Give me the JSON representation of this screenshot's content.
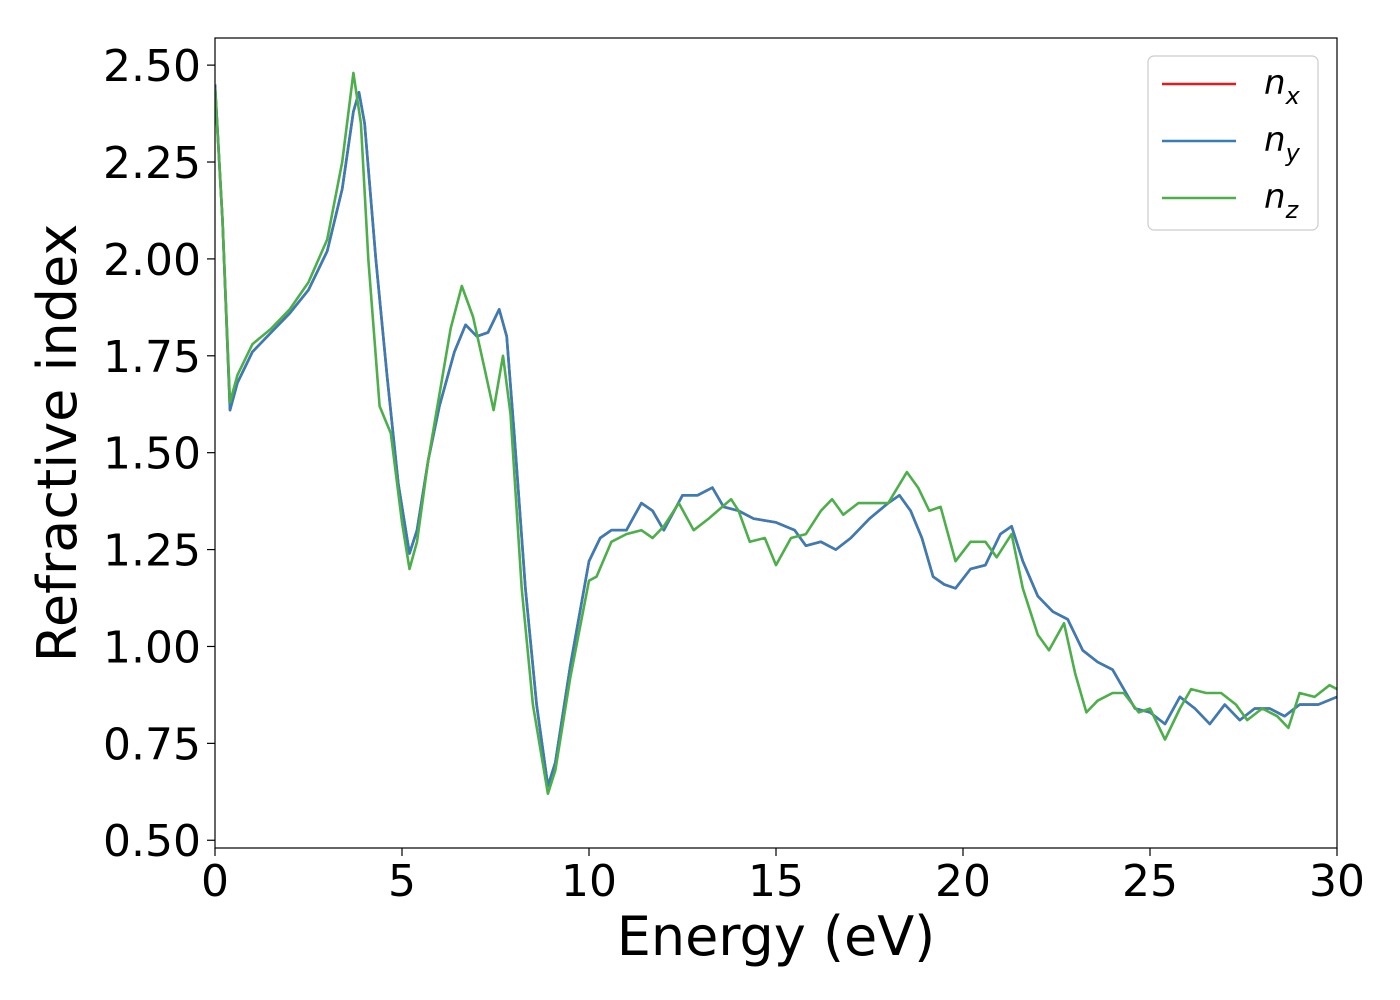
{
  "chart_data": {
    "type": "line",
    "title": "",
    "xlabel": "Energy (eV)",
    "ylabel": "Refractive index",
    "xlim": [
      0,
      30
    ],
    "ylim": [
      0.48,
      2.57
    ],
    "xticks": [
      0,
      5,
      10,
      15,
      20,
      25,
      30
    ],
    "xtick_labels": [
      "0",
      "5",
      "10",
      "15",
      "20",
      "25",
      "30"
    ],
    "yticks": [
      0.5,
      0.75,
      1.0,
      1.25,
      1.5,
      1.75,
      2.0,
      2.25,
      2.5
    ],
    "ytick_labels": [
      "0.50",
      "0.75",
      "1.00",
      "1.25",
      "1.50",
      "1.75",
      "2.00",
      "2.25",
      "2.50"
    ],
    "grid": false,
    "legend_position": "top-right",
    "series": [
      {
        "name": "n",
        "subscript": "x",
        "color": "#e41a1c",
        "points": [
          [
            0,
            2.45
          ],
          [
            0.2,
            2.1
          ],
          [
            0.4,
            1.61
          ],
          [
            0.6,
            1.68
          ],
          [
            1.0,
            1.76
          ],
          [
            1.5,
            1.81
          ],
          [
            2.0,
            1.86
          ],
          [
            2.5,
            1.92
          ],
          [
            3.0,
            2.02
          ],
          [
            3.4,
            2.18
          ],
          [
            3.7,
            2.38
          ],
          [
            3.85,
            2.43
          ],
          [
            4.0,
            2.35
          ],
          [
            4.3,
            2.0
          ],
          [
            4.6,
            1.7
          ],
          [
            4.9,
            1.42
          ],
          [
            5.2,
            1.24
          ],
          [
            5.4,
            1.3
          ],
          [
            5.7,
            1.48
          ],
          [
            6.0,
            1.62
          ],
          [
            6.4,
            1.76
          ],
          [
            6.7,
            1.83
          ],
          [
            7.0,
            1.8
          ],
          [
            7.3,
            1.81
          ],
          [
            7.6,
            1.87
          ],
          [
            7.8,
            1.8
          ],
          [
            8.0,
            1.55
          ],
          [
            8.3,
            1.15
          ],
          [
            8.6,
            0.85
          ],
          [
            8.9,
            0.64
          ],
          [
            9.1,
            0.7
          ],
          [
            9.5,
            0.95
          ],
          [
            10.0,
            1.22
          ],
          [
            10.3,
            1.28
          ],
          [
            10.6,
            1.3
          ],
          [
            11.0,
            1.3
          ],
          [
            11.4,
            1.37
          ],
          [
            11.7,
            1.35
          ],
          [
            12.0,
            1.3
          ],
          [
            12.5,
            1.39
          ],
          [
            12.9,
            1.39
          ],
          [
            13.3,
            1.41
          ],
          [
            13.6,
            1.36
          ],
          [
            14.0,
            1.35
          ],
          [
            14.4,
            1.33
          ],
          [
            15.0,
            1.32
          ],
          [
            15.5,
            1.3
          ],
          [
            15.8,
            1.26
          ],
          [
            16.2,
            1.27
          ],
          [
            16.6,
            1.25
          ],
          [
            17.0,
            1.28
          ],
          [
            17.5,
            1.33
          ],
          [
            18.0,
            1.37
          ],
          [
            18.3,
            1.39
          ],
          [
            18.6,
            1.35
          ],
          [
            18.9,
            1.28
          ],
          [
            19.2,
            1.18
          ],
          [
            19.5,
            1.16
          ],
          [
            19.8,
            1.15
          ],
          [
            20.2,
            1.2
          ],
          [
            20.6,
            1.21
          ],
          [
            21.0,
            1.29
          ],
          [
            21.3,
            1.31
          ],
          [
            21.6,
            1.22
          ],
          [
            22.0,
            1.13
          ],
          [
            22.4,
            1.09
          ],
          [
            22.8,
            1.07
          ],
          [
            23.2,
            0.99
          ],
          [
            23.6,
            0.96
          ],
          [
            24.0,
            0.94
          ],
          [
            24.3,
            0.89
          ],
          [
            24.6,
            0.84
          ],
          [
            25.0,
            0.83
          ],
          [
            25.4,
            0.8
          ],
          [
            25.8,
            0.87
          ],
          [
            26.2,
            0.84
          ],
          [
            26.6,
            0.8
          ],
          [
            27.0,
            0.85
          ],
          [
            27.4,
            0.81
          ],
          [
            27.8,
            0.84
          ],
          [
            28.2,
            0.84
          ],
          [
            28.6,
            0.82
          ],
          [
            29.0,
            0.85
          ],
          [
            29.5,
            0.85
          ],
          [
            30.0,
            0.87
          ]
        ]
      },
      {
        "name": "n",
        "subscript": "y",
        "color": "#377eb8",
        "points": [
          [
            0,
            2.45
          ],
          [
            0.2,
            2.1
          ],
          [
            0.4,
            1.61
          ],
          [
            0.6,
            1.68
          ],
          [
            1.0,
            1.76
          ],
          [
            1.5,
            1.81
          ],
          [
            2.0,
            1.86
          ],
          [
            2.5,
            1.92
          ],
          [
            3.0,
            2.02
          ],
          [
            3.4,
            2.18
          ],
          [
            3.7,
            2.38
          ],
          [
            3.85,
            2.43
          ],
          [
            4.0,
            2.35
          ],
          [
            4.3,
            2.0
          ],
          [
            4.6,
            1.7
          ],
          [
            4.9,
            1.42
          ],
          [
            5.2,
            1.24
          ],
          [
            5.4,
            1.3
          ],
          [
            5.7,
            1.48
          ],
          [
            6.0,
            1.62
          ],
          [
            6.4,
            1.76
          ],
          [
            6.7,
            1.83
          ],
          [
            7.0,
            1.8
          ],
          [
            7.3,
            1.81
          ],
          [
            7.6,
            1.87
          ],
          [
            7.8,
            1.8
          ],
          [
            8.0,
            1.55
          ],
          [
            8.3,
            1.15
          ],
          [
            8.6,
            0.85
          ],
          [
            8.9,
            0.64
          ],
          [
            9.1,
            0.7
          ],
          [
            9.5,
            0.95
          ],
          [
            10.0,
            1.22
          ],
          [
            10.3,
            1.28
          ],
          [
            10.6,
            1.3
          ],
          [
            11.0,
            1.3
          ],
          [
            11.4,
            1.37
          ],
          [
            11.7,
            1.35
          ],
          [
            12.0,
            1.3
          ],
          [
            12.5,
            1.39
          ],
          [
            12.9,
            1.39
          ],
          [
            13.3,
            1.41
          ],
          [
            13.6,
            1.36
          ],
          [
            14.0,
            1.35
          ],
          [
            14.4,
            1.33
          ],
          [
            15.0,
            1.32
          ],
          [
            15.5,
            1.3
          ],
          [
            15.8,
            1.26
          ],
          [
            16.2,
            1.27
          ],
          [
            16.6,
            1.25
          ],
          [
            17.0,
            1.28
          ],
          [
            17.5,
            1.33
          ],
          [
            18.0,
            1.37
          ],
          [
            18.3,
            1.39
          ],
          [
            18.6,
            1.35
          ],
          [
            18.9,
            1.28
          ],
          [
            19.2,
            1.18
          ],
          [
            19.5,
            1.16
          ],
          [
            19.8,
            1.15
          ],
          [
            20.2,
            1.2
          ],
          [
            20.6,
            1.21
          ],
          [
            21.0,
            1.29
          ],
          [
            21.3,
            1.31
          ],
          [
            21.6,
            1.22
          ],
          [
            22.0,
            1.13
          ],
          [
            22.4,
            1.09
          ],
          [
            22.8,
            1.07
          ],
          [
            23.2,
            0.99
          ],
          [
            23.6,
            0.96
          ],
          [
            24.0,
            0.94
          ],
          [
            24.3,
            0.89
          ],
          [
            24.6,
            0.84
          ],
          [
            25.0,
            0.83
          ],
          [
            25.4,
            0.8
          ],
          [
            25.8,
            0.87
          ],
          [
            26.2,
            0.84
          ],
          [
            26.6,
            0.8
          ],
          [
            27.0,
            0.85
          ],
          [
            27.4,
            0.81
          ],
          [
            27.8,
            0.84
          ],
          [
            28.2,
            0.84
          ],
          [
            28.6,
            0.82
          ],
          [
            29.0,
            0.85
          ],
          [
            29.5,
            0.85
          ],
          [
            30.0,
            0.87
          ]
        ]
      },
      {
        "name": "n",
        "subscript": "z",
        "color": "#4daf4a",
        "points": [
          [
            0,
            2.44
          ],
          [
            0.2,
            2.1
          ],
          [
            0.4,
            1.63
          ],
          [
            0.6,
            1.7
          ],
          [
            1.0,
            1.78
          ],
          [
            1.5,
            1.82
          ],
          [
            2.0,
            1.87
          ],
          [
            2.5,
            1.94
          ],
          [
            3.0,
            2.05
          ],
          [
            3.4,
            2.25
          ],
          [
            3.7,
            2.48
          ],
          [
            3.9,
            2.35
          ],
          [
            4.1,
            2.0
          ],
          [
            4.4,
            1.62
          ],
          [
            4.7,
            1.55
          ],
          [
            5.0,
            1.32
          ],
          [
            5.2,
            1.2
          ],
          [
            5.4,
            1.27
          ],
          [
            5.7,
            1.48
          ],
          [
            6.0,
            1.65
          ],
          [
            6.3,
            1.82
          ],
          [
            6.6,
            1.93
          ],
          [
            6.9,
            1.85
          ],
          [
            7.2,
            1.72
          ],
          [
            7.45,
            1.61
          ],
          [
            7.7,
            1.75
          ],
          [
            7.9,
            1.6
          ],
          [
            8.2,
            1.15
          ],
          [
            8.5,
            0.85
          ],
          [
            8.9,
            0.62
          ],
          [
            9.1,
            0.68
          ],
          [
            9.5,
            0.92
          ],
          [
            10.0,
            1.17
          ],
          [
            10.2,
            1.18
          ],
          [
            10.6,
            1.27
          ],
          [
            11.0,
            1.29
          ],
          [
            11.4,
            1.3
          ],
          [
            11.7,
            1.28
          ],
          [
            12.0,
            1.31
          ],
          [
            12.4,
            1.37
          ],
          [
            12.8,
            1.3
          ],
          [
            13.2,
            1.33
          ],
          [
            13.8,
            1.38
          ],
          [
            14.0,
            1.35
          ],
          [
            14.3,
            1.27
          ],
          [
            14.7,
            1.28
          ],
          [
            15.0,
            1.21
          ],
          [
            15.4,
            1.28
          ],
          [
            15.8,
            1.29
          ],
          [
            16.2,
            1.35
          ],
          [
            16.5,
            1.38
          ],
          [
            16.8,
            1.34
          ],
          [
            17.2,
            1.37
          ],
          [
            17.6,
            1.37
          ],
          [
            18.0,
            1.37
          ],
          [
            18.5,
            1.45
          ],
          [
            18.8,
            1.41
          ],
          [
            19.1,
            1.35
          ],
          [
            19.4,
            1.36
          ],
          [
            19.8,
            1.22
          ],
          [
            20.2,
            1.27
          ],
          [
            20.6,
            1.27
          ],
          [
            20.9,
            1.23
          ],
          [
            21.3,
            1.29
          ],
          [
            21.6,
            1.15
          ],
          [
            22.0,
            1.03
          ],
          [
            22.3,
            0.99
          ],
          [
            22.7,
            1.06
          ],
          [
            23.0,
            0.93
          ],
          [
            23.3,
            0.83
          ],
          [
            23.6,
            0.86
          ],
          [
            24.0,
            0.88
          ],
          [
            24.3,
            0.88
          ],
          [
            24.7,
            0.83
          ],
          [
            25.0,
            0.84
          ],
          [
            25.4,
            0.76
          ],
          [
            25.8,
            0.84
          ],
          [
            26.1,
            0.89
          ],
          [
            26.5,
            0.88
          ],
          [
            26.9,
            0.88
          ],
          [
            27.3,
            0.85
          ],
          [
            27.6,
            0.81
          ],
          [
            28.0,
            0.84
          ],
          [
            28.4,
            0.82
          ],
          [
            28.7,
            0.79
          ],
          [
            29.0,
            0.88
          ],
          [
            29.4,
            0.87
          ],
          [
            29.8,
            0.9
          ],
          [
            30.0,
            0.89
          ]
        ]
      }
    ]
  }
}
